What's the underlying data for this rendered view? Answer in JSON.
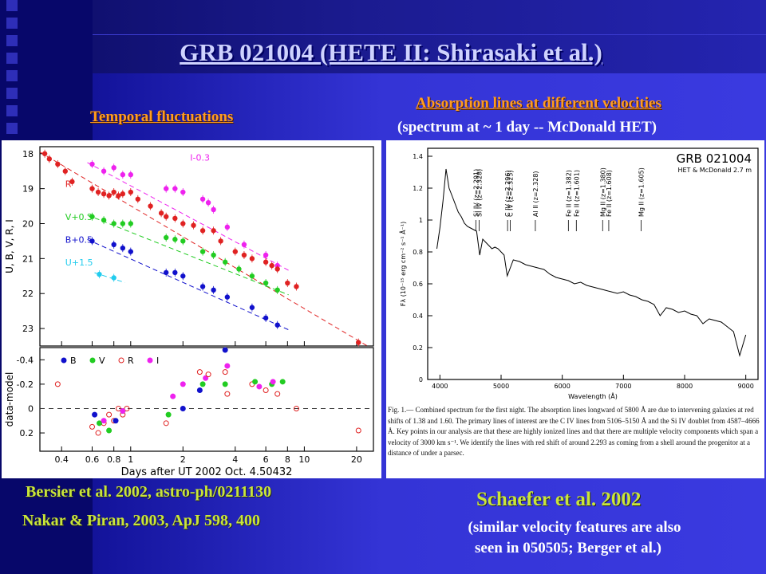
{
  "slide": {
    "title": "GRB 021004 (HETE II: Shirasaki et al.)",
    "left_heading": "Temporal fluctuations",
    "right_heading": "Absorption lines at different velocities",
    "right_subheading": "(spectrum at ~ 1 day -- McDonald HET)",
    "ref_bersier": "Bersier et al. 2002, astro-ph/0211130",
    "ref_nakar": "Nakar & Piran, 2003, ApJ 598, 400",
    "ref_schaefer": "Schaefer et al. 2002",
    "note_line1": "(similar velocity features are also",
    "note_line2": "seen in 050505; Berger et al.)",
    "colors": {
      "orange": "#ff9c22",
      "yellow_green": "#c9e53a",
      "background": "#3434d6"
    }
  },
  "chart_data": [
    {
      "type": "scatter",
      "panel": "light curve",
      "xlabel": "Days after UT 2002 Oct. 4.50432",
      "ylabel": "U, B, V, R, I",
      "x_scale": "log",
      "xlim": [
        0.3,
        25
      ],
      "ylim": [
        23.5,
        17.8
      ],
      "x_ticks": [
        "0.4",
        "0.6",
        "0.8",
        "1",
        "2",
        "4",
        "6",
        "8",
        "10",
        "20"
      ],
      "y_ticks": [
        "18",
        "19",
        "20",
        "21",
        "22",
        "23"
      ],
      "series": [
        {
          "name": "I-0.3",
          "color": "#ee22ee",
          "points": [
            [
              0.6,
              18.3
            ],
            [
              0.7,
              18.5
            ],
            [
              0.8,
              18.4
            ],
            [
              0.9,
              18.6
            ],
            [
              1.0,
              18.6
            ],
            [
              1.6,
              19.0
            ],
            [
              1.8,
              19.0
            ],
            [
              2.0,
              19.1
            ],
            [
              2.6,
              19.3
            ],
            [
              2.8,
              19.4
            ],
            [
              3.0,
              19.6
            ],
            [
              3.6,
              20.1
            ],
            [
              4.5,
              20.6
            ],
            [
              6.0,
              20.9
            ],
            [
              7.0,
              21.2
            ]
          ]
        },
        {
          "name": "R",
          "color": "#e02222",
          "points": [
            [
              0.32,
              18.0
            ],
            [
              0.34,
              18.15
            ],
            [
              0.38,
              18.3
            ],
            [
              0.42,
              18.5
            ],
            [
              0.46,
              18.8
            ],
            [
              0.6,
              19.0
            ],
            [
              0.65,
              19.1
            ],
            [
              0.7,
              19.15
            ],
            [
              0.75,
              19.2
            ],
            [
              0.8,
              19.1
            ],
            [
              0.85,
              19.2
            ],
            [
              0.9,
              19.15
            ],
            [
              1.0,
              19.1
            ],
            [
              1.1,
              19.3
            ],
            [
              1.3,
              19.5
            ],
            [
              1.5,
              19.7
            ],
            [
              1.6,
              19.8
            ],
            [
              1.8,
              19.85
            ],
            [
              2.0,
              20.0
            ],
            [
              2.3,
              20.05
            ],
            [
              2.6,
              20.2
            ],
            [
              3.0,
              20.2
            ],
            [
              3.3,
              20.5
            ],
            [
              4.0,
              20.8
            ],
            [
              4.5,
              20.9
            ],
            [
              5.0,
              21.0
            ],
            [
              6.0,
              21.1
            ],
            [
              6.5,
              21.2
            ],
            [
              7.0,
              21.3
            ],
            [
              8.0,
              21.7
            ],
            [
              9.0,
              21.8
            ],
            [
              20.5,
              23.4
            ]
          ]
        },
        {
          "name": "V+0.3",
          "color": "#22cc22",
          "points": [
            [
              0.6,
              19.8
            ],
            [
              0.7,
              19.9
            ],
            [
              0.8,
              20.0
            ],
            [
              0.9,
              20.0
            ],
            [
              1.0,
              20.0
            ],
            [
              1.6,
              20.4
            ],
            [
              1.8,
              20.45
            ],
            [
              2.0,
              20.5
            ],
            [
              2.6,
              20.8
            ],
            [
              3.0,
              20.9
            ],
            [
              3.5,
              21.1
            ],
            [
              4.2,
              21.3
            ],
            [
              5.0,
              21.5
            ],
            [
              6.0,
              21.7
            ],
            [
              7.0,
              21.9
            ]
          ]
        },
        {
          "name": "B+0.5",
          "color": "#1111cc",
          "points": [
            [
              0.6,
              20.5
            ],
            [
              0.8,
              20.6
            ],
            [
              0.9,
              20.7
            ],
            [
              1.0,
              20.8
            ],
            [
              1.6,
              21.4
            ],
            [
              1.8,
              21.4
            ],
            [
              2.0,
              21.5
            ],
            [
              2.6,
              21.8
            ],
            [
              3.0,
              21.9
            ],
            [
              3.6,
              22.1
            ],
            [
              5.0,
              22.4
            ],
            [
              6.0,
              22.7
            ],
            [
              7.0,
              22.9
            ]
          ]
        },
        {
          "name": "U+1.5",
          "color": "#22ccee",
          "points": [
            [
              0.66,
              21.45
            ],
            [
              0.8,
              21.55
            ]
          ]
        }
      ],
      "residual_panel": {
        "ylabel": "data-model",
        "ylim": [
          0.35,
          -0.5
        ],
        "y_ticks": [
          "-0.4",
          "-0.2",
          "0",
          "0.2"
        ],
        "legend": [
          "B",
          "V",
          "R",
          "I"
        ],
        "points": [
          {
            "band": "R",
            "x": 0.38,
            "y": -0.2
          },
          {
            "band": "R",
            "x": 0.6,
            "y": 0.15
          },
          {
            "band": "R",
            "x": 0.65,
            "y": 0.2
          },
          {
            "band": "R",
            "x": 0.7,
            "y": 0.12
          },
          {
            "band": "R",
            "x": 0.75,
            "y": 0.05
          },
          {
            "band": "R",
            "x": 0.8,
            "y": 0.1
          },
          {
            "band": "R",
            "x": 0.85,
            "y": 0.0
          },
          {
            "band": "R",
            "x": 0.9,
            "y": 0.05
          },
          {
            "band": "R",
            "x": 0.95,
            "y": 0.0
          },
          {
            "band": "V",
            "x": 0.66,
            "y": 0.12
          },
          {
            "band": "V",
            "x": 0.75,
            "y": 0.18
          },
          {
            "band": "V",
            "x": 0.9,
            "y": 0.02
          },
          {
            "band": "B",
            "x": 0.62,
            "y": 0.05
          },
          {
            "band": "B",
            "x": 0.82,
            "y": 0.1
          },
          {
            "band": "I",
            "x": 0.7,
            "y": 0.1
          },
          {
            "band": "I",
            "x": 0.9,
            "y": 0.02
          },
          {
            "band": "R",
            "x": 1.6,
            "y": 0.12
          },
          {
            "band": "V",
            "x": 1.65,
            "y": 0.05
          },
          {
            "band": "I",
            "x": 1.75,
            "y": -0.1
          },
          {
            "band": "I",
            "x": 2.0,
            "y": -0.2
          },
          {
            "band": "B",
            "x": 2.0,
            "y": 0.0
          },
          {
            "band": "R",
            "x": 2.5,
            "y": -0.3
          },
          {
            "band": "V",
            "x": 2.6,
            "y": -0.2
          },
          {
            "band": "I",
            "x": 2.7,
            "y": -0.25
          },
          {
            "band": "R",
            "x": 2.8,
            "y": -0.28
          },
          {
            "band": "B",
            "x": 2.5,
            "y": -0.15
          },
          {
            "band": "R",
            "x": 3.5,
            "y": -0.3
          },
          {
            "band": "I",
            "x": 3.6,
            "y": -0.35
          },
          {
            "band": "B",
            "x": 3.5,
            "y": -0.48
          },
          {
            "band": "R",
            "x": 3.6,
            "y": -0.12
          },
          {
            "band": "V",
            "x": 3.5,
            "y": -0.2
          },
          {
            "band": "R",
            "x": 5.0,
            "y": -0.2
          },
          {
            "band": "V",
            "x": 5.2,
            "y": -0.22
          },
          {
            "band": "I",
            "x": 5.5,
            "y": -0.18
          },
          {
            "band": "R",
            "x": 6.0,
            "y": -0.15
          },
          {
            "band": "V",
            "x": 6.5,
            "y": -0.2
          },
          {
            "band": "I",
            "x": 6.6,
            "y": -0.22
          },
          {
            "band": "R",
            "x": 7.0,
            "y": -0.12
          },
          {
            "band": "V",
            "x": 7.5,
            "y": -0.22
          },
          {
            "band": "R",
            "x": 9.0,
            "y": 0.0
          },
          {
            "band": "R",
            "x": 20.5,
            "y": 0.18
          }
        ]
      }
    },
    {
      "type": "line",
      "panel": "spectrum",
      "title": "GRB 021004",
      "subtitle": "HET & McDonald 2.7 m",
      "xlabel": "Wavelength (Å)",
      "ylabel": "Fλ (10⁻¹⁵ erg cm⁻² s⁻¹ Å⁻¹)",
      "xlim": [
        3800,
        9200
      ],
      "ylim": [
        0,
        1.45
      ],
      "x_ticks": [
        "4000",
        "5000",
        "6000",
        "7000",
        "8000",
        "9000"
      ],
      "y_ticks": [
        "0",
        "0.2",
        "0.4",
        "0.6",
        "0.8",
        "1",
        "1.2",
        "1.4"
      ],
      "x": [
        3950,
        4000,
        4050,
        4100,
        4150,
        4200,
        4250,
        4300,
        4350,
        4400,
        4450,
        4500,
        4550,
        4600,
        4650,
        4700,
        4750,
        4800,
        4850,
        4900,
        4950,
        5000,
        5050,
        5100,
        5150,
        5200,
        5300,
        5400,
        5500,
        5600,
        5700,
        5800,
        5900,
        6000,
        6100,
        6200,
        6300,
        6400,
        6500,
        6600,
        6700,
        6800,
        6900,
        7000,
        7100,
        7200,
        7300,
        7400,
        7500,
        7600,
        7700,
        7800,
        7900,
        8000,
        8100,
        8200,
        8300,
        8400,
        8500,
        8600,
        8700,
        8800,
        8900,
        9000
      ],
      "values": [
        0.82,
        0.95,
        1.12,
        1.32,
        1.2,
        1.15,
        1.1,
        1.05,
        1.02,
        0.98,
        0.96,
        0.95,
        0.94,
        0.93,
        0.78,
        0.88,
        0.86,
        0.84,
        0.82,
        0.83,
        0.82,
        0.8,
        0.78,
        0.65,
        0.7,
        0.75,
        0.74,
        0.72,
        0.71,
        0.7,
        0.69,
        0.66,
        0.64,
        0.63,
        0.62,
        0.6,
        0.61,
        0.59,
        0.58,
        0.57,
        0.56,
        0.55,
        0.54,
        0.55,
        0.53,
        0.52,
        0.5,
        0.49,
        0.47,
        0.4,
        0.45,
        0.44,
        0.42,
        0.43,
        0.41,
        0.4,
        0.35,
        0.38,
        0.37,
        0.36,
        0.33,
        0.3,
        0.15,
        0.28
      ],
      "line_labels": [
        {
          "text": "Si IV (z=2.291)",
          "wavelength": 4587
        },
        {
          "text": "Si IV (z=2.328)",
          "wavelength": 4640
        },
        {
          "text": "C IV (z=2.296)",
          "wavelength": 5106
        },
        {
          "text": "C IV (z=2.325)",
          "wavelength": 5150
        },
        {
          "text": "Al II (z=2.328)",
          "wavelength": 5560
        },
        {
          "text": "Fe II (z=1.382)",
          "wavelength": 6100
        },
        {
          "text": "Fe II (z=1.601)",
          "wavelength": 6230
        },
        {
          "text": "Mg II (z=1.380)",
          "wavelength": 6660
        },
        {
          "text": "Fe II (z=1.608)",
          "wavelength": 6760
        },
        {
          "text": "Mg II (z=1.605)",
          "wavelength": 7290
        }
      ],
      "caption": "Fig. 1.— Combined spectrum for the first night. The absorption lines longward of 5800 Å are due to intervening galaxies at red shifts of 1.38 and 1.60. The primary lines of interest are the C IV lines from 5106–5150 Å and the Si IV doublet from 4587–4666 Å. Key points in our analysis are that these are highly ionized lines and that there are multiple velocity components which span a velocity of 3000 km s⁻¹. We identify the lines with red shift of around 2.293 as coming from a shell around the progenitor at a distance of under a parsec."
    }
  ]
}
